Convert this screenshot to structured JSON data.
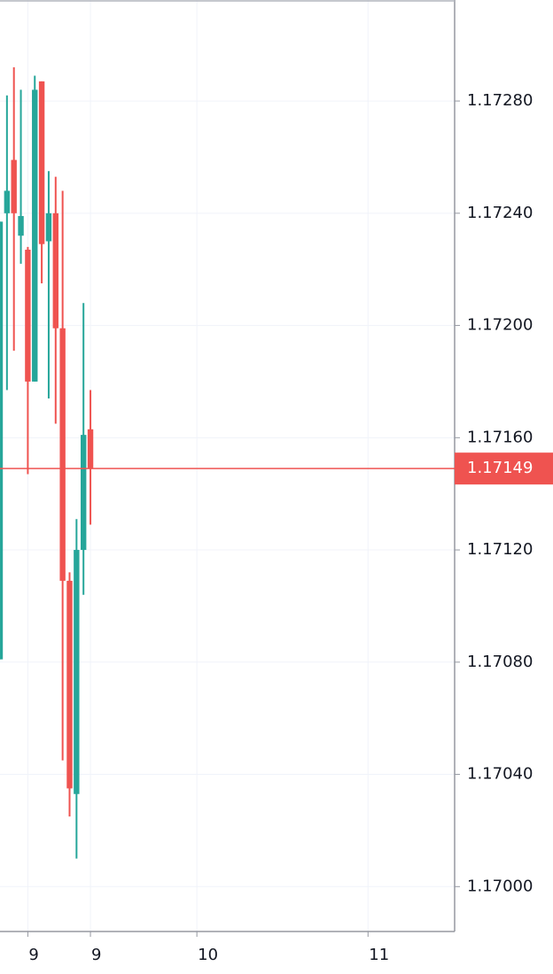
{
  "chart_data": {
    "type": "candlestick",
    "x": [
      0,
      1,
      2,
      3,
      4,
      5,
      6,
      7,
      8,
      9,
      10,
      11,
      12,
      13
    ],
    "open": [
      1.17081,
      1.1724,
      1.17259,
      1.17232,
      1.17227,
      1.1718,
      1.17287,
      1.1723,
      1.1724,
      1.17199,
      1.17109,
      1.17033,
      1.1712,
      1.17163
    ],
    "high": [
      1.17237,
      1.17282,
      1.17292,
      1.17284,
      1.17228,
      1.17289,
      1.17287,
      1.17255,
      1.17253,
      1.17248,
      1.17112,
      1.17131,
      1.17208,
      1.17177
    ],
    "low": [
      1.17081,
      1.17177,
      1.17191,
      1.17222,
      1.17147,
      1.1718,
      1.17215,
      1.17174,
      1.17165,
      1.17045,
      1.17025,
      1.1701,
      1.17104,
      1.17129
    ],
    "close": [
      1.17237,
      1.17248,
      1.1724,
      1.17239,
      1.1718,
      1.17284,
      1.17229,
      1.1724,
      1.17199,
      1.17109,
      1.17035,
      1.1712,
      1.17161,
      1.17149
    ],
    "up_color": "#26a69a",
    "down_color": "#ef5350",
    "price_line": 1.17149,
    "price_line_color": "#ef5350",
    "xlim": [
      0,
      65.35
    ],
    "xticks": [
      {
        "value": 4,
        "label": "9"
      },
      {
        "value": 13,
        "label": "9"
      },
      {
        "value": 28.3,
        "label": "10"
      },
      {
        "value": 52.9,
        "label": "11"
      }
    ],
    "ylim": [
      1.16984,
      1.17316
    ],
    "yticks": [
      {
        "value": 1.17,
        "label": "1.17000"
      },
      {
        "value": 1.1704,
        "label": "1.17040"
      },
      {
        "value": 1.1708,
        "label": "1.17080"
      },
      {
        "value": 1.1712,
        "label": "1.17120"
      },
      {
        "value": 1.1716,
        "label": "1.17160"
      },
      {
        "value": 1.172,
        "label": "1.17200"
      },
      {
        "value": 1.1724,
        "label": "1.17240"
      },
      {
        "value": 1.1728,
        "label": "1.17280"
      }
    ],
    "grid": true
  }
}
